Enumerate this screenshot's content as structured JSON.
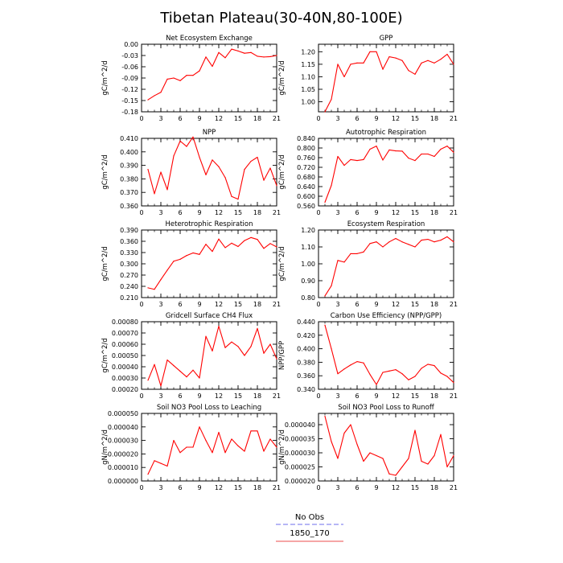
{
  "figure": {
    "title": "Tibetan Plateau(30-40N,80-100E)",
    "legend": [
      {
        "label": "No Obs",
        "color": "#8a8af0",
        "dash": true
      },
      {
        "label": "1850_170",
        "color": "#f07070",
        "dash": false
      }
    ]
  },
  "chart_data": [
    {
      "type": "line",
      "title": "Net Ecosystem Exchange",
      "ylabel": "gC/m^2/d",
      "xlim": [
        0,
        21
      ],
      "xticks": [
        0,
        3,
        6,
        9,
        12,
        15,
        18,
        21
      ],
      "ylim": [
        -0.18,
        0.0
      ],
      "yticks": [
        "0.00",
        "-0.03",
        "-0.06",
        "-0.09",
        "-0.12",
        "-0.15",
        "-0.18"
      ],
      "ytick_values": [
        0.0,
        -0.03,
        -0.06,
        -0.09,
        -0.12,
        -0.15,
        -0.18
      ],
      "series": [
        {
          "color": "#ff0000",
          "x": [
            1,
            2,
            3,
            4,
            5,
            6,
            7,
            8,
            9,
            10,
            11,
            12,
            13,
            14,
            15,
            16,
            17,
            18,
            19,
            20,
            21
          ],
          "values": [
            -0.148,
            -0.137,
            -0.128,
            -0.093,
            -0.09,
            -0.097,
            -0.083,
            -0.083,
            -0.071,
            -0.034,
            -0.059,
            -0.022,
            -0.036,
            -0.013,
            -0.018,
            -0.024,
            -0.022,
            -0.032,
            -0.034,
            -0.033,
            -0.03
          ]
        }
      ]
    },
    {
      "type": "line",
      "title": "GPP",
      "ylabel": "gC/m^2/d",
      "xlim": [
        0,
        21
      ],
      "xticks": [
        0,
        3,
        6,
        9,
        12,
        15,
        18,
        21
      ],
      "ylim": [
        0.96,
        1.23
      ],
      "yticks": [
        "1.00",
        "1.05",
        "1.10",
        "1.15",
        "1.20"
      ],
      "ytick_values": [
        1.0,
        1.05,
        1.1,
        1.15,
        1.2
      ],
      "series": [
        {
          "color": "#ff0000",
          "x": [
            1,
            2,
            3,
            4,
            5,
            6,
            7,
            8,
            9,
            10,
            11,
            12,
            13,
            14,
            15,
            16,
            17,
            18,
            19,
            20,
            21
          ],
          "values": [
            0.96,
            1.01,
            1.15,
            1.1,
            1.15,
            1.155,
            1.155,
            1.2,
            1.2,
            1.13,
            1.18,
            1.175,
            1.165,
            1.125,
            1.11,
            1.155,
            1.165,
            1.155,
            1.17,
            1.19,
            1.15
          ]
        }
      ]
    },
    {
      "type": "line",
      "title": "NPP",
      "ylabel": "gC/m^2/d",
      "xlim": [
        0,
        21
      ],
      "xticks": [
        0,
        3,
        6,
        9,
        12,
        15,
        18,
        21
      ],
      "ylim": [
        0.36,
        0.41
      ],
      "yticks": [
        "0.410",
        "0.400",
        "0.390",
        "0.380",
        "0.370",
        "0.360"
      ],
      "ytick_values": [
        0.41,
        0.4,
        0.39,
        0.38,
        0.37,
        0.36
      ],
      "series": [
        {
          "color": "#ff0000",
          "x": [
            1,
            2,
            3,
            4,
            5,
            6,
            7,
            8,
            9,
            10,
            11,
            12,
            13,
            14,
            15,
            16,
            17,
            18,
            19,
            20,
            21
          ],
          "values": [
            0.387,
            0.369,
            0.385,
            0.372,
            0.397,
            0.408,
            0.404,
            0.411,
            0.396,
            0.383,
            0.394,
            0.389,
            0.381,
            0.367,
            0.365,
            0.387,
            0.393,
            0.396,
            0.379,
            0.388,
            0.375
          ]
        }
      ]
    },
    {
      "type": "line",
      "title": "Autotrophic Respiration",
      "ylabel": "gC/m^2/d",
      "xlim": [
        0,
        21
      ],
      "xticks": [
        0,
        3,
        6,
        9,
        12,
        15,
        18,
        21
      ],
      "ylim": [
        0.56,
        0.84
      ],
      "yticks": [
        "0.840",
        "0.800",
        "0.760",
        "0.720",
        "0.680",
        "0.640",
        "0.600",
        "0.560"
      ],
      "ytick_values": [
        0.84,
        0.8,
        0.76,
        0.72,
        0.68,
        0.64,
        0.6,
        0.56
      ],
      "series": [
        {
          "color": "#ff0000",
          "x": [
            1,
            2,
            3,
            4,
            5,
            6,
            7,
            8,
            9,
            10,
            11,
            12,
            13,
            14,
            15,
            16,
            17,
            18,
            19,
            20,
            21
          ],
          "values": [
            0.575,
            0.645,
            0.765,
            0.728,
            0.752,
            0.748,
            0.752,
            0.795,
            0.808,
            0.75,
            0.792,
            0.788,
            0.787,
            0.758,
            0.748,
            0.775,
            0.775,
            0.765,
            0.795,
            0.808,
            0.782
          ]
        }
      ]
    },
    {
      "type": "line",
      "title": "Heterotrophic Respiration",
      "ylabel": "gC/m^2/d",
      "xlim": [
        0,
        21
      ],
      "xticks": [
        0,
        3,
        6,
        9,
        12,
        15,
        18,
        21
      ],
      "ylim": [
        0.21,
        0.39
      ],
      "yticks": [
        "0.390",
        "0.360",
        "0.330",
        "0.300",
        "0.270",
        "0.240",
        "0.210"
      ],
      "ytick_values": [
        0.39,
        0.36,
        0.33,
        0.3,
        0.27,
        0.24,
        0.21
      ],
      "series": [
        {
          "color": "#ff0000",
          "x": [
            1,
            2,
            3,
            4,
            5,
            6,
            7,
            8,
            9,
            10,
            11,
            12,
            13,
            14,
            15,
            16,
            17,
            18,
            19,
            20,
            21
          ],
          "values": [
            0.236,
            0.232,
            0.258,
            0.283,
            0.307,
            0.312,
            0.322,
            0.329,
            0.325,
            0.352,
            0.333,
            0.366,
            0.343,
            0.355,
            0.346,
            0.362,
            0.37,
            0.365,
            0.341,
            0.354,
            0.345
          ]
        }
      ]
    },
    {
      "type": "line",
      "title": "Ecosystem Respiration",
      "ylabel": "gC/m^2/d",
      "xlim": [
        0,
        21
      ],
      "xticks": [
        0,
        3,
        6,
        9,
        12,
        15,
        18,
        21
      ],
      "ylim": [
        0.8,
        1.2
      ],
      "yticks": [
        "1.20",
        "1.10",
        "1.00",
        "0.90",
        "0.80"
      ],
      "ytick_values": [
        1.2,
        1.1,
        1.0,
        0.9,
        0.8
      ],
      "series": [
        {
          "color": "#ff0000",
          "x": [
            1,
            2,
            3,
            4,
            5,
            6,
            7,
            8,
            9,
            10,
            11,
            12,
            13,
            14,
            15,
            16,
            17,
            18,
            19,
            20,
            21
          ],
          "values": [
            0.81,
            0.87,
            1.02,
            1.01,
            1.06,
            1.06,
            1.07,
            1.12,
            1.13,
            1.1,
            1.13,
            1.15,
            1.13,
            1.115,
            1.1,
            1.14,
            1.145,
            1.13,
            1.14,
            1.16,
            1.13
          ]
        }
      ]
    },
    {
      "type": "line",
      "title": "Gridcell Surface CH4 Flux",
      "ylabel": "gC/m^2/d",
      "xlim": [
        0,
        21
      ],
      "xticks": [
        0,
        3,
        6,
        9,
        12,
        15,
        18,
        21
      ],
      "ylim": [
        0.0002,
        0.0008
      ],
      "yticks": [
        "0.00080",
        "0.00070",
        "0.00060",
        "0.00050",
        "0.00040",
        "0.00030",
        "0.00020"
      ],
      "ytick_values": [
        0.0008,
        0.0007,
        0.0006,
        0.0005,
        0.0004,
        0.0003,
        0.0002
      ],
      "series": [
        {
          "color": "#ff0000",
          "x": [
            1,
            2,
            3,
            4,
            5,
            6,
            7,
            8,
            9,
            10,
            11,
            12,
            13,
            14,
            15,
            16,
            17,
            18,
            19,
            20,
            21
          ],
          "values": [
            0.00028,
            0.00042,
            0.00023,
            0.00046,
            0.00041,
            0.00036,
            0.00031,
            0.00037,
            0.0003,
            0.00067,
            0.00054,
            0.00076,
            0.00057,
            0.00062,
            0.00058,
            0.0005,
            0.00058,
            0.00074,
            0.00052,
            0.0006,
            0.00047
          ]
        }
      ]
    },
    {
      "type": "line",
      "title": "Carbon Use Efficiency (NPP/GPP)",
      "ylabel": "NPP/GPP",
      "xlim": [
        0,
        21
      ],
      "xticks": [
        0,
        3,
        6,
        9,
        12,
        15,
        18,
        21
      ],
      "ylim": [
        0.34,
        0.44
      ],
      "yticks": [
        "0.440",
        "0.420",
        "0.400",
        "0.380",
        "0.360",
        "0.340"
      ],
      "ytick_values": [
        0.44,
        0.42,
        0.4,
        0.38,
        0.36,
        0.34
      ],
      "series": [
        {
          "color": "#ff0000",
          "x": [
            1,
            2,
            3,
            4,
            5,
            6,
            7,
            8,
            9,
            10,
            11,
            12,
            13,
            14,
            15,
            16,
            17,
            18,
            19,
            20,
            21
          ],
          "values": [
            0.435,
            0.4,
            0.363,
            0.37,
            0.376,
            0.381,
            0.379,
            0.362,
            0.347,
            0.365,
            0.367,
            0.369,
            0.363,
            0.354,
            0.359,
            0.371,
            0.377,
            0.375,
            0.364,
            0.359,
            0.35
          ]
        }
      ]
    },
    {
      "type": "line",
      "title": "Soil NO3 Pool Loss to Leaching",
      "ylabel": "gN/m^2/d",
      "xlim": [
        0,
        21
      ],
      "xticks": [
        0,
        3,
        6,
        9,
        12,
        15,
        18,
        21
      ],
      "ylim": [
        0.0,
        5e-05
      ],
      "yticks": [
        "0.000050",
        "0.000040",
        "0.000030",
        "0.000020",
        "0.000010",
        "0.000000"
      ],
      "ytick_values": [
        5e-05,
        4e-05,
        3e-05,
        2e-05,
        1e-05,
        0.0
      ],
      "series": [
        {
          "color": "#ff0000",
          "x": [
            1,
            2,
            3,
            4,
            5,
            6,
            7,
            8,
            9,
            10,
            11,
            12,
            13,
            14,
            15,
            16,
            17,
            18,
            19,
            20,
            21
          ],
          "values": [
            5e-06,
            1.5e-05,
            1.3e-05,
            1.1e-05,
            3e-05,
            2.1e-05,
            2.5e-05,
            2.5e-05,
            4e-05,
            3e-05,
            2.1e-05,
            3.6e-05,
            2.1e-05,
            3.1e-05,
            2.6e-05,
            2.2e-05,
            3.7e-05,
            3.7e-05,
            2.2e-05,
            3.1e-05,
            2.5e-05
          ]
        }
      ]
    },
    {
      "type": "line",
      "title": "Soil NO3 Pool Loss to Runoff",
      "ylabel": "gN/m^2/d",
      "xlim": [
        0,
        21
      ],
      "xticks": [
        0,
        3,
        6,
        9,
        12,
        15,
        18,
        21
      ],
      "ylim": [
        2e-05,
        4.4e-05
      ],
      "yticks": [
        "0.000040",
        "0.000035",
        "0.000030",
        "0.000025",
        "0.000020"
      ],
      "ytick_values": [
        4e-05,
        3.5e-05,
        3e-05,
        2.5e-05,
        2e-05
      ],
      "series": [
        {
          "color": "#ff0000",
          "x": [
            1,
            2,
            3,
            4,
            5,
            6,
            7,
            8,
            9,
            10,
            11,
            12,
            13,
            14,
            15,
            16,
            17,
            18,
            19,
            20,
            21
          ],
          "values": [
            4.3e-05,
            3.4e-05,
            2.8e-05,
            3.7e-05,
            4e-05,
            3.3e-05,
            2.7e-05,
            3e-05,
            2.9e-05,
            2.8e-05,
            2.25e-05,
            2.2e-05,
            2.5e-05,
            2.8e-05,
            3.8e-05,
            2.7e-05,
            2.6e-05,
            2.9e-05,
            3.65e-05,
            2.5e-05,
            2.9e-05
          ]
        }
      ]
    }
  ]
}
